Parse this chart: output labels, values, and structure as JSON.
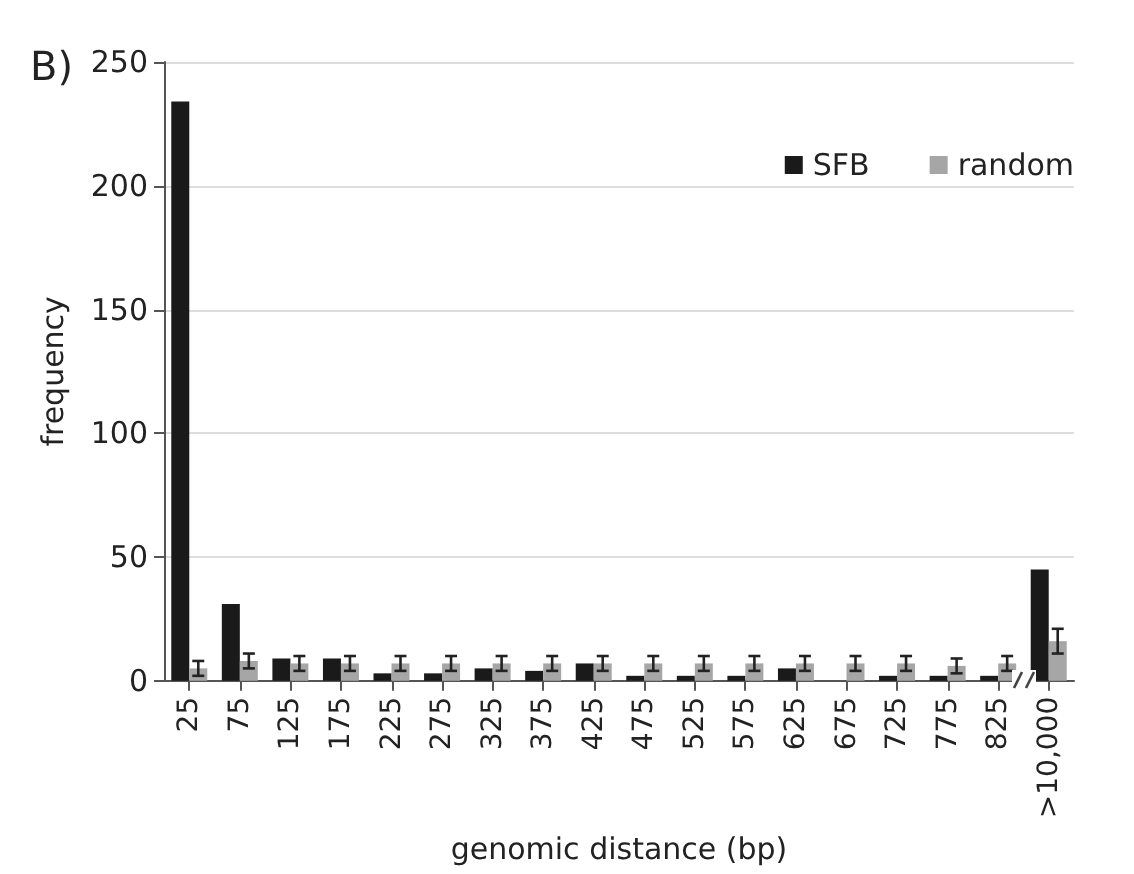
{
  "chart_data": {
    "type": "bar",
    "title": "B)",
    "xlabel": "genomic distance (bp)",
    "ylabel": "frequency",
    "categories": [
      "25",
      "75",
      "125",
      "175",
      "225",
      "275",
      "325",
      "375",
      "425",
      "475",
      "525",
      "575",
      "625",
      "675",
      "725",
      "775",
      "825",
      ">10,000"
    ],
    "series": [
      {
        "name": "SFB",
        "color": "#1a1a1a",
        "values": [
          234,
          31,
          9,
          9,
          3,
          3,
          5,
          4,
          7,
          2,
          2,
          2,
          5,
          0,
          2,
          2,
          2,
          45
        ]
      },
      {
        "name": "random",
        "color": "#a6a6a6",
        "values": [
          5,
          8,
          7,
          7,
          7,
          7,
          7,
          7,
          7,
          7,
          7,
          7,
          7,
          7,
          7,
          6,
          7,
          16
        ],
        "errors": [
          3,
          3,
          3,
          3,
          3,
          3,
          3,
          3,
          3,
          3,
          3,
          3,
          3,
          3,
          3,
          3,
          3,
          5
        ]
      }
    ],
    "ylim": [
      0,
      250
    ],
    "yticks": [
      0,
      50,
      100,
      150,
      200,
      250
    ],
    "grid": "y",
    "legend": "top right"
  }
}
